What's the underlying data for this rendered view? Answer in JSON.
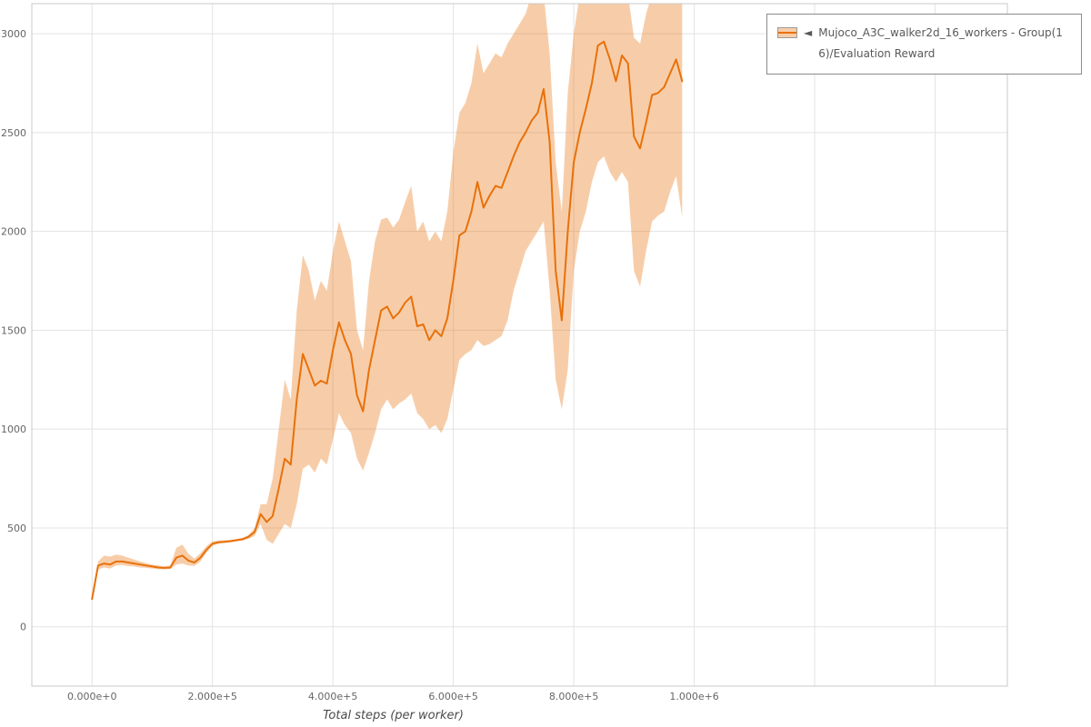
{
  "chart_data": {
    "type": "line",
    "title": "",
    "xlabel": "Total steps (per worker)",
    "ylabel": "",
    "xlim": [
      -100000,
      1520000
    ],
    "ylim": [
      -300,
      3152
    ],
    "grid": true,
    "x_ticks": [
      {
        "v": 0,
        "label": "0.000e+0"
      },
      {
        "v": 200000,
        "label": "2.000e+5"
      },
      {
        "v": 400000,
        "label": "4.000e+5"
      },
      {
        "v": 600000,
        "label": "6.000e+5"
      },
      {
        "v": 800000,
        "label": "8.000e+5"
      },
      {
        "v": 1000000,
        "label": "1.000e+6"
      }
    ],
    "x_grid_extra": [
      1200000,
      1400000
    ],
    "y_ticks": [
      {
        "v": 0,
        "label": "0"
      },
      {
        "v": 500,
        "label": "500"
      },
      {
        "v": 1000,
        "label": "1000"
      },
      {
        "v": 1500,
        "label": "1500"
      },
      {
        "v": 2000,
        "label": "2000"
      },
      {
        "v": 2500,
        "label": "2500"
      },
      {
        "v": 3000,
        "label": "3000"
      }
    ],
    "legend": {
      "position": "top-right-outside",
      "collapse_icon": "◄",
      "label": "Mujoco_A3C_walker2d_16_workers - Group(16)/Evaluation Reward"
    },
    "colors": {
      "line": "#e8710a",
      "band": "#e8710a",
      "band_opacity": 0.35,
      "grid": "#e3e3e3",
      "border": "#c8c8c8",
      "tick_text": "#666666",
      "axis_label": "#4a4a4a",
      "legend_text": "#595959",
      "legend_border": "#8c8c8c",
      "plot_bg": "#ffffff"
    },
    "x": [
      0,
      10000,
      20000,
      30000,
      40000,
      50000,
      60000,
      70000,
      80000,
      90000,
      100000,
      110000,
      120000,
      130000,
      140000,
      150000,
      160000,
      170000,
      180000,
      190000,
      200000,
      210000,
      220000,
      230000,
      240000,
      250000,
      260000,
      270000,
      280000,
      290000,
      300000,
      310000,
      320000,
      330000,
      340000,
      350000,
      360000,
      370000,
      380000,
      390000,
      400000,
      410000,
      420000,
      430000,
      440000,
      450000,
      460000,
      470000,
      480000,
      490000,
      500000,
      510000,
      520000,
      530000,
      540000,
      550000,
      560000,
      570000,
      580000,
      590000,
      600000,
      610000,
      620000,
      630000,
      640000,
      650000,
      660000,
      670000,
      680000,
      690000,
      700000,
      710000,
      720000,
      730000,
      740000,
      750000,
      760000,
      770000,
      780000,
      790000,
      800000,
      810000,
      820000,
      830000,
      840000,
      850000,
      860000,
      870000,
      880000,
      890000,
      900000,
      910000,
      920000,
      930000,
      940000,
      950000,
      960000,
      970000,
      980000
    ],
    "series": [
      {
        "name": "Mujoco_A3C_walker2d_16_workers - Group(16)/Evaluation Reward",
        "values": [
          140,
          310,
          320,
          315,
          330,
          330,
          325,
          320,
          315,
          310,
          305,
          300,
          298,
          300,
          350,
          360,
          335,
          325,
          350,
          390,
          420,
          428,
          430,
          433,
          438,
          443,
          455,
          480,
          570,
          530,
          560,
          700,
          850,
          820,
          1150,
          1380,
          1300,
          1220,
          1245,
          1230,
          1400,
          1540,
          1450,
          1380,
          1170,
          1090,
          1300,
          1450,
          1600,
          1620,
          1560,
          1590,
          1640,
          1670,
          1520,
          1530,
          1450,
          1500,
          1470,
          1560,
          1750,
          1980,
          2000,
          2100,
          2250,
          2120,
          2180,
          2230,
          2220,
          2300,
          2380,
          2450,
          2500,
          2560,
          2600,
          2720,
          2450,
          1800,
          1550,
          2000,
          2350,
          2500,
          2620,
          2750,
          2940,
          2960,
          2870,
          2760,
          2890,
          2850,
          2480,
          2420,
          2550,
          2690,
          2700,
          2730,
          2800,
          2870,
          2760
        ],
        "lower": [
          140,
          290,
          300,
          295,
          310,
          312,
          308,
          305,
          300,
          298,
          295,
          292,
          290,
          292,
          315,
          320,
          310,
          308,
          330,
          375,
          410,
          420,
          424,
          428,
          432,
          436,
          445,
          460,
          520,
          440,
          420,
          470,
          520,
          500,
          620,
          800,
          820,
          780,
          850,
          820,
          950,
          1080,
          1020,
          980,
          850,
          790,
          880,
          980,
          1100,
          1150,
          1100,
          1130,
          1150,
          1180,
          1080,
          1050,
          1000,
          1020,
          980,
          1050,
          1200,
          1350,
          1380,
          1400,
          1450,
          1420,
          1430,
          1450,
          1470,
          1550,
          1700,
          1800,
          1900,
          1950,
          2000,
          2050,
          1700,
          1250,
          1100,
          1300,
          1800,
          2000,
          2100,
          2250,
          2350,
          2380,
          2300,
          2250,
          2300,
          2250,
          1800,
          1720,
          1900,
          2050,
          2080,
          2100,
          2200,
          2280,
          2070
        ],
        "upper": [
          140,
          330,
          360,
          355,
          365,
          360,
          350,
          340,
          330,
          322,
          315,
          310,
          306,
          310,
          400,
          415,
          370,
          345,
          372,
          408,
          432,
          436,
          438,
          440,
          444,
          450,
          465,
          500,
          620,
          620,
          750,
          1000,
          1250,
          1150,
          1600,
          1880,
          1800,
          1650,
          1750,
          1700,
          1900,
          2050,
          1950,
          1850,
          1500,
          1400,
          1750,
          1950,
          2060,
          2070,
          2020,
          2060,
          2150,
          2230,
          2000,
          2050,
          1950,
          2000,
          1950,
          2100,
          2400,
          2600,
          2650,
          2750,
          2950,
          2800,
          2850,
          2900,
          2880,
          2950,
          3000,
          3050,
          3100,
          3200,
          3200,
          3200,
          2900,
          2350,
          2100,
          2700,
          3000,
          3200,
          3200,
          3200,
          3200,
          3200,
          3200,
          3200,
          3200,
          3200,
          2980,
          2950,
          3100,
          3200,
          3200,
          3200,
          3200,
          3200,
          3200
        ]
      }
    ]
  }
}
